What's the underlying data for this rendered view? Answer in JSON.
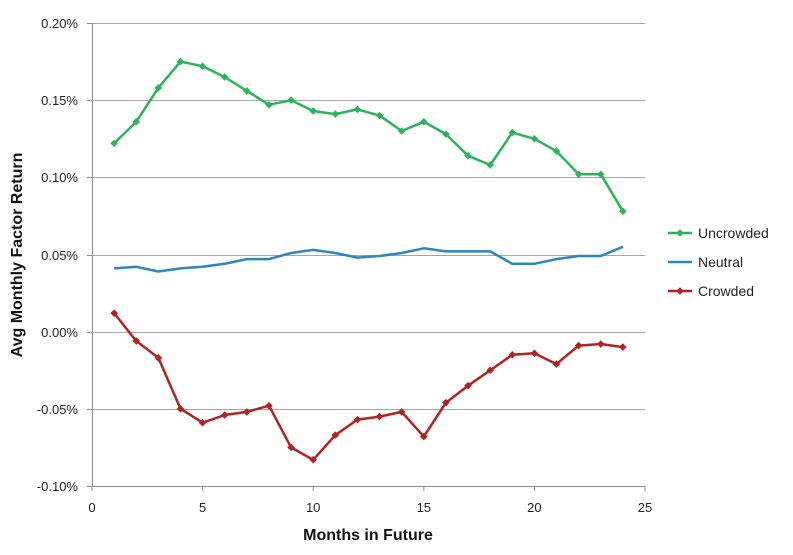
{
  "chart_data": {
    "type": "line",
    "title": "",
    "xlabel": "Months in Future",
    "ylabel": "Avg Monthly Factor Return",
    "xlim": [
      0,
      25
    ],
    "ylim": [
      -0.1,
      0.2
    ],
    "x_ticks": [
      0,
      5,
      10,
      15,
      20,
      25
    ],
    "x_tick_labels": [
      "0",
      "5",
      "10",
      "15",
      "20",
      "25"
    ],
    "y_ticks": [
      0.2,
      0.15,
      0.1,
      0.05,
      0.0,
      -0.05,
      -0.1
    ],
    "y_tick_labels": [
      "0.20%",
      "0.15%",
      "0.10%",
      "0.05%",
      "0.00%",
      "-0.05%",
      "-0.10%"
    ],
    "y_unit": "%",
    "grid": "horizontal",
    "legend_position": "right",
    "x": [
      1,
      2,
      3,
      4,
      5,
      6,
      7,
      8,
      9,
      10,
      11,
      12,
      13,
      14,
      15,
      16,
      17,
      18,
      19,
      20,
      21,
      22,
      23,
      24
    ],
    "series": [
      {
        "name": "Uncrowded",
        "color": "#2DB35A",
        "marker": "diamond",
        "values": [
          0.122,
          0.136,
          0.158,
          0.175,
          0.172,
          0.165,
          0.156,
          0.147,
          0.15,
          0.143,
          0.141,
          0.144,
          0.14,
          0.13,
          0.136,
          0.128,
          0.114,
          0.108,
          0.129,
          0.125,
          0.117,
          0.102,
          0.102,
          0.078
        ]
      },
      {
        "name": "Neutral",
        "color": "#2E86C1",
        "marker": "none",
        "values": [
          0.041,
          0.042,
          0.039,
          0.041,
          0.042,
          0.044,
          0.047,
          0.047,
          0.051,
          0.053,
          0.051,
          0.048,
          0.049,
          0.051,
          0.054,
          0.052,
          0.052,
          0.052,
          0.044,
          0.044,
          0.047,
          0.049,
          0.049,
          0.055
        ]
      },
      {
        "name": "Crowded",
        "color": "#B22222",
        "marker": "diamond",
        "values": [
          0.012,
          -0.006,
          -0.017,
          -0.05,
          -0.059,
          -0.054,
          -0.052,
          -0.048,
          -0.075,
          -0.083,
          -0.067,
          -0.057,
          -0.055,
          -0.052,
          -0.068,
          -0.046,
          -0.035,
          -0.025,
          -0.015,
          -0.014,
          -0.021,
          -0.009,
          -0.008,
          -0.01
        ]
      }
    ]
  }
}
